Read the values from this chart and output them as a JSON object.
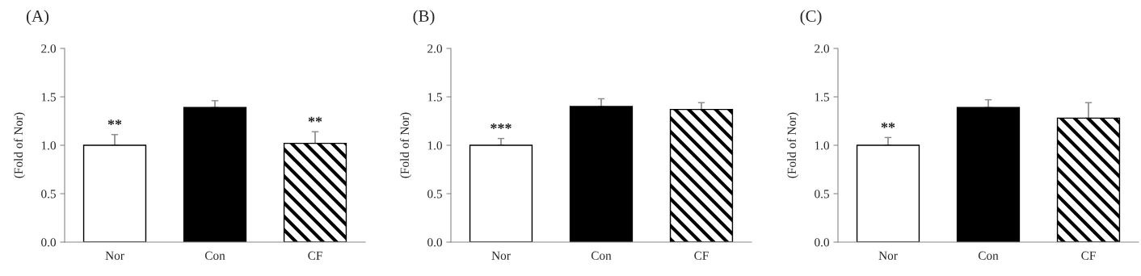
{
  "chart_data": [
    {
      "type": "bar",
      "title": "(A)",
      "ylabel": "(Fold of Nor)",
      "categories": [
        "Nor",
        "Con",
        "CF"
      ],
      "values": [
        1.0,
        1.39,
        1.02
      ],
      "colors": [
        "#ffffff",
        "#000000",
        "#000000"
      ],
      "errors": [
        [
          1.0,
          1.11
        ],
        [
          1.39,
          1.46
        ],
        [
          1.02,
          1.14
        ]
      ],
      "ylim": [
        0,
        2.0
      ],
      "yticks": [
        {
          "value": 0,
          "label": "0.0"
        },
        {
          "value": 0.5,
          "label": "0.5"
        },
        {
          "value": 1.0,
          "label": "1.0"
        },
        {
          "value": 1.5,
          "label": "1.5"
        },
        {
          "value": 2.0,
          "label": "2.0"
        }
      ],
      "grid": false,
      "annotations": [
        {
          "text": "**",
          "x": "Nor",
          "y": 1.11
        },
        {
          "text": "**",
          "x": "CF",
          "y": 1.14
        }
      ]
    },
    {
      "type": "bar",
      "title": "(B)",
      "ylabel": "(Fold of Nor)",
      "categories": [
        "Nor",
        "Con",
        "CF"
      ],
      "values": [
        1.0,
        1.4,
        1.37
      ],
      "colors": [
        "#ffffff",
        "#000000",
        "#000000"
      ],
      "errors": [
        [
          1.0,
          1.07
        ],
        [
          1.4,
          1.48
        ],
        [
          1.37,
          1.44
        ]
      ],
      "ylim": [
        0,
        2.0
      ],
      "yticks": [
        {
          "value": 0,
          "label": "0.0"
        },
        {
          "value": 0.5,
          "label": "0.5"
        },
        {
          "value": 1.0,
          "label": "1.0"
        },
        {
          "value": 1.5,
          "label": "1.5"
        },
        {
          "value": 2.0,
          "label": "2.0"
        }
      ],
      "grid": false,
      "annotations": [
        {
          "text": "***",
          "x": "Nor",
          "y": 1.07
        }
      ]
    },
    {
      "type": "bar",
      "title": "(C)",
      "ylabel": "(Fold of Nor)",
      "categories": [
        "Nor",
        "Con",
        "CF"
      ],
      "values": [
        1.0,
        1.39,
        1.28
      ],
      "colors": [
        "#ffffff",
        "#000000",
        "#000000"
      ],
      "errors": [
        [
          1.0,
          1.08
        ],
        [
          1.39,
          1.47
        ],
        [
          1.28,
          1.44
        ]
      ],
      "ylim": [
        0,
        2.0
      ],
      "yticks": [
        {
          "value": 0,
          "label": "0.0"
        },
        {
          "value": 0.5,
          "label": "0.5"
        },
        {
          "value": 1.0,
          "label": "1.0"
        },
        {
          "value": 1.5,
          "label": "1.5"
        },
        {
          "value": 2.0,
          "label": "2.0"
        }
      ],
      "grid": false,
      "annotations": [
        {
          "text": "**",
          "x": "Nor",
          "y": 1.08
        }
      ]
    }
  ]
}
